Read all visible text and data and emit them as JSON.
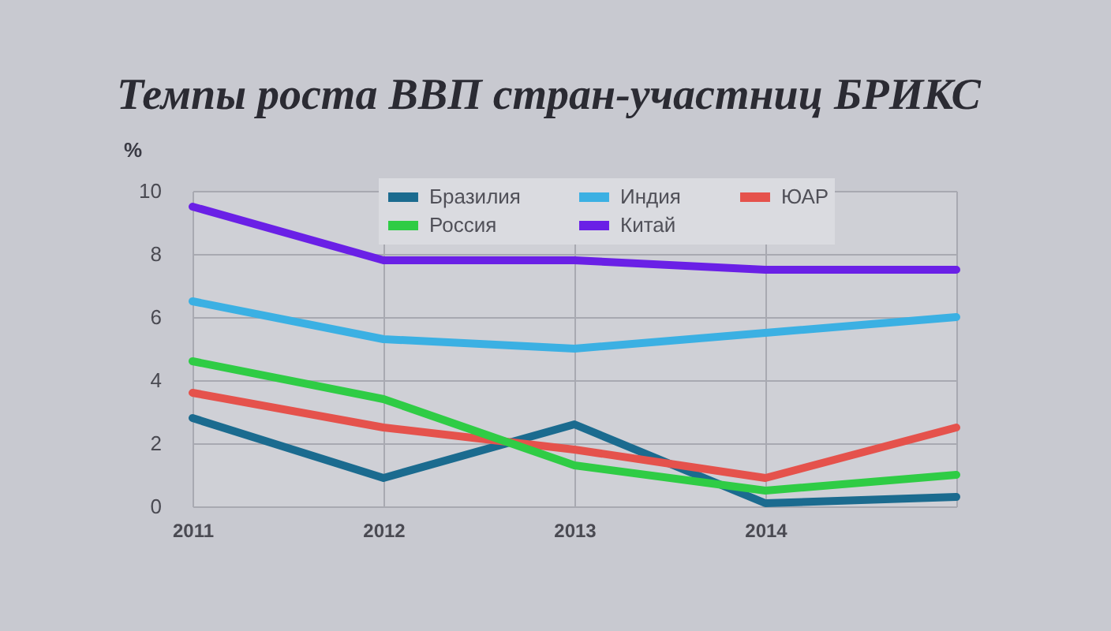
{
  "chart_data": {
    "type": "line",
    "title": "Темпы роста ВВП стран-участниц БРИКС",
    "ylabel": "%",
    "categories": [
      "2011",
      "2012",
      "2013",
      "2014",
      null
    ],
    "ylim": [
      0,
      10
    ],
    "yticks": [
      0,
      2,
      4,
      6,
      8,
      10
    ],
    "grid": true,
    "legend": "top",
    "marker": "none",
    "line_style": "solid",
    "series": [
      {
        "name": "Бразилия",
        "color": "#1b6b8f",
        "values": [
          2.8,
          0.9,
          2.6,
          0.1,
          0.3
        ]
      },
      {
        "name": "Индия",
        "color": "#3bb0e3",
        "values": [
          6.5,
          5.3,
          5.0,
          5.5,
          6.0
        ]
      },
      {
        "name": "ЮАР",
        "color": "#e5524c",
        "values": [
          3.6,
          2.5,
          1.8,
          0.9,
          2.5
        ]
      },
      {
        "name": "Россия",
        "color": "#2fcc45",
        "values": [
          4.6,
          3.4,
          1.3,
          0.5,
          1.0
        ]
      },
      {
        "name": "Китай",
        "color": "#6a20e6",
        "values": [
          9.5,
          7.8,
          7.8,
          7.5,
          7.5
        ]
      }
    ]
  }
}
